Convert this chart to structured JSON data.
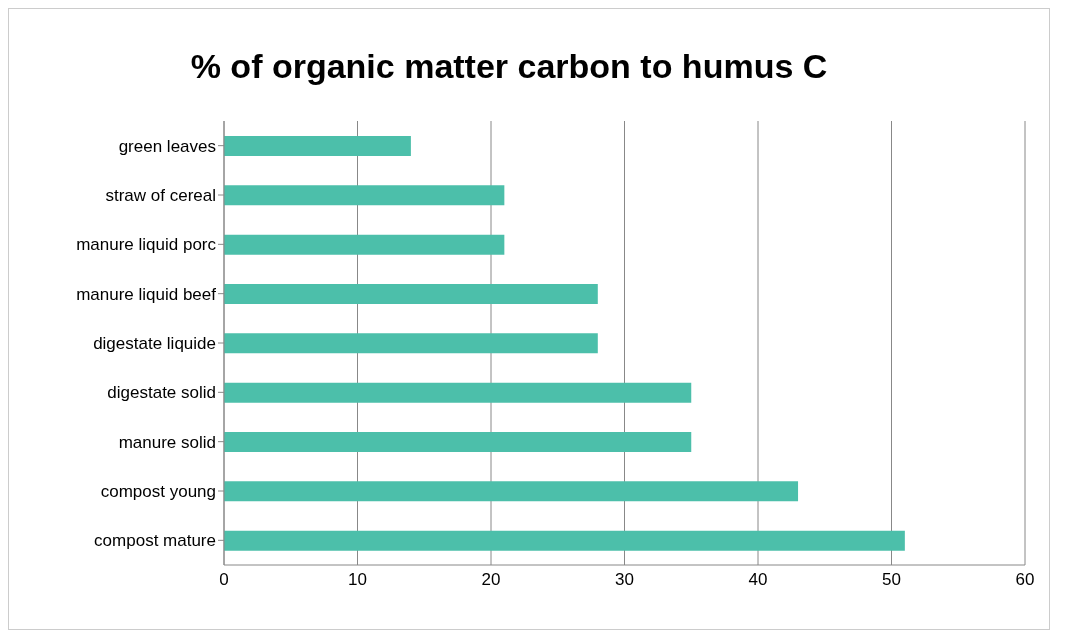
{
  "chart_data": {
    "type": "bar",
    "orientation": "horizontal",
    "title": "% of organic matter carbon to humus C",
    "categories": [
      "green leaves",
      "straw of cereal",
      "manure liquid porc",
      "manure liquid beef",
      "digestate liquide",
      "digestate solid",
      "manure solid",
      "compost young",
      "compost mature"
    ],
    "values": [
      14,
      21,
      21,
      28,
      28,
      35,
      35,
      43,
      51
    ],
    "color": "#4cbfaa",
    "xlim": [
      0,
      60
    ],
    "xticks": [
      0,
      10,
      20,
      30,
      40,
      50,
      60
    ],
    "grid": "x"
  }
}
